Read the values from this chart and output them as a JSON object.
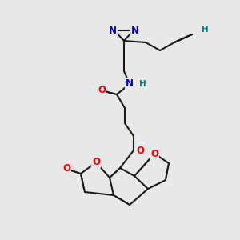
{
  "bg_color": "#e8e8e8",
  "bond_color": "#1a1a1a",
  "bond_width": 1.5,
  "dbo": 0.012,
  "atom_colors": {
    "O": "#ff0000",
    "N": "#0000cc",
    "H": "#008888",
    "C": "#1a1a1a"
  },
  "fs": 8.5
}
